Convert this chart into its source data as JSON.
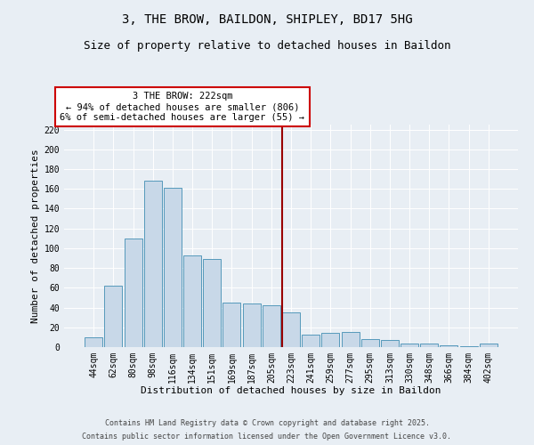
{
  "title1": "3, THE BROW, BAILDON, SHIPLEY, BD17 5HG",
  "title2": "Size of property relative to detached houses in Baildon",
  "xlabel": "Distribution of detached houses by size in Baildon",
  "ylabel": "Number of detached properties",
  "categories": [
    "44sqm",
    "62sqm",
    "80sqm",
    "98sqm",
    "116sqm",
    "134sqm",
    "151sqm",
    "169sqm",
    "187sqm",
    "205sqm",
    "223sqm",
    "241sqm",
    "259sqm",
    "277sqm",
    "295sqm",
    "313sqm",
    "330sqm",
    "348sqm",
    "366sqm",
    "384sqm",
    "402sqm"
  ],
  "values": [
    10,
    62,
    110,
    168,
    161,
    93,
    89,
    45,
    44,
    42,
    35,
    13,
    14,
    15,
    8,
    7,
    4,
    4,
    2,
    1,
    4
  ],
  "bar_color": "#c8d8e8",
  "bar_edge_color": "#5599bb",
  "vline_index": 10,
  "vline_color": "#990000",
  "annotation_title": "3 THE BROW: 222sqm",
  "annotation_line1": "← 94% of detached houses are smaller (806)",
  "annotation_line2": "6% of semi-detached houses are larger (55) →",
  "annotation_box_color": "#ffffff",
  "annotation_border_color": "#cc0000",
  "ylim": [
    0,
    225
  ],
  "yticks": [
    0,
    20,
    40,
    60,
    80,
    100,
    120,
    140,
    160,
    180,
    200,
    220
  ],
  "background_color": "#e8eef4",
  "footer1": "Contains HM Land Registry data © Crown copyright and database right 2025.",
  "footer2": "Contains public sector information licensed under the Open Government Licence v3.0.",
  "title_fontsize": 10,
  "subtitle_fontsize": 9,
  "axis_label_fontsize": 8,
  "tick_fontsize": 7,
  "annot_fontsize": 7.5,
  "footer_fontsize": 6
}
